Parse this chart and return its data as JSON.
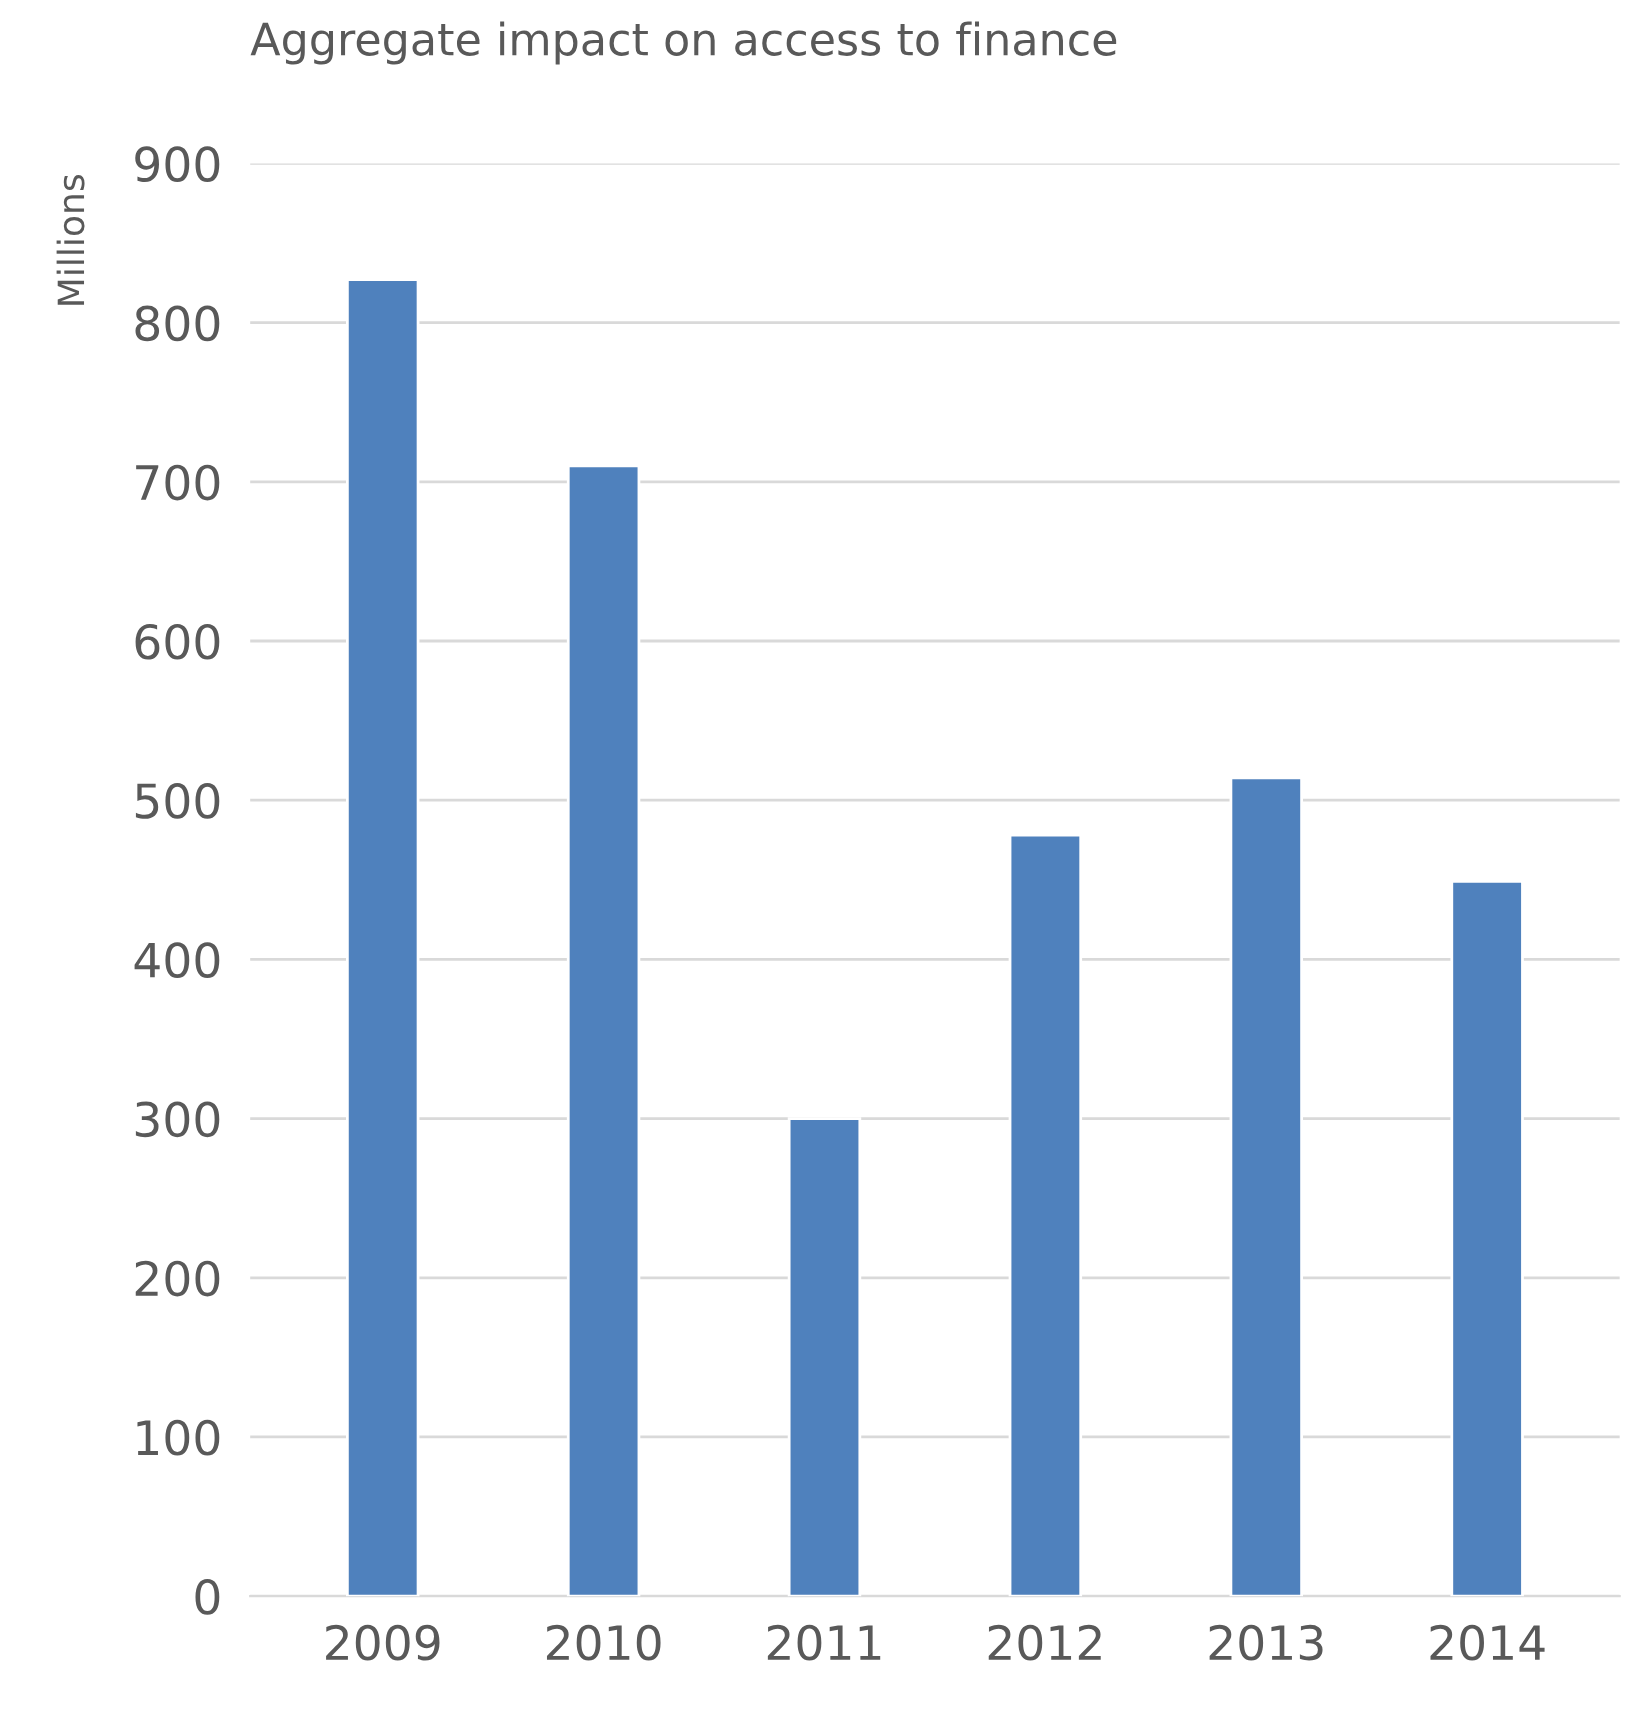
{
  "chart_data": {
    "type": "bar",
    "title": "Aggregate impact on access to finance",
    "ylabel": "Millions",
    "categories": [
      "2009",
      "2010",
      "2011",
      "2012",
      "2013",
      "2014"
    ],
    "values": [
      827,
      710,
      300,
      478,
      514,
      449
    ],
    "color": "#4f81bd",
    "ylim": [
      0,
      900
    ],
    "yticks": [
      0,
      100,
      200,
      300,
      400,
      500,
      600,
      700,
      800,
      900
    ],
    "grid": "y",
    "legend": false
  }
}
